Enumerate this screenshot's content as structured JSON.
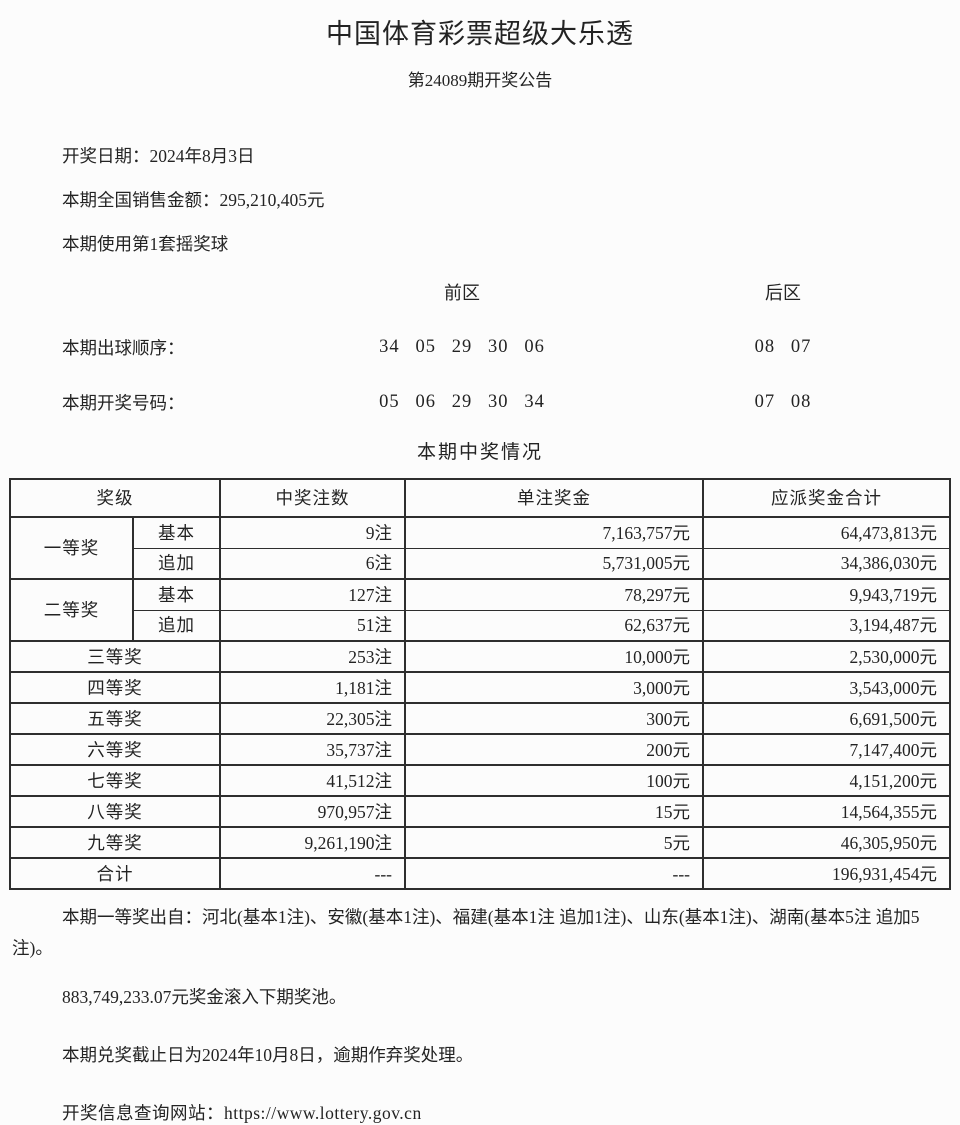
{
  "header": {
    "title": "中国体育彩票超级大乐透",
    "subtitle": "第24089期开奖公告"
  },
  "info": {
    "draw_date": "开奖日期：2024年8月3日",
    "sales_amount": "本期全国销售金额：295,210,405元",
    "ball_set": "本期使用第1套摇奖球"
  },
  "numbers": {
    "front_zone_label": "前区",
    "back_zone_label": "后区",
    "draw_order_label": "本期出球顺序：",
    "draw_order_front": "34 05 29 30 06",
    "draw_order_back": "08 07",
    "winning_label": "本期开奖号码：",
    "winning_front": "05 06 29 30 34",
    "winning_back": "07 08"
  },
  "prize_section": {
    "section_title": "本期中奖情况",
    "headers": {
      "level": "奖级",
      "count": "中奖注数",
      "single_prize": "单注奖金",
      "total_prize": "应派奖金合计"
    },
    "groups": [
      {
        "level": "一等奖",
        "rows": [
          {
            "type": "基本",
            "count": "9注",
            "single_prize": "7,163,757元",
            "total_prize": "64,473,813元"
          },
          {
            "type": "追加",
            "count": "6注",
            "single_prize": "5,731,005元",
            "total_prize": "34,386,030元"
          }
        ]
      },
      {
        "level": "二等奖",
        "rows": [
          {
            "type": "基本",
            "count": "127注",
            "single_prize": "78,297元",
            "total_prize": "9,943,719元"
          },
          {
            "type": "追加",
            "count": "51注",
            "single_prize": "62,637元",
            "total_prize": "3,194,487元"
          }
        ]
      }
    ],
    "rows": [
      {
        "level": "三等奖",
        "count": "253注",
        "single_prize": "10,000元",
        "total_prize": "2,530,000元"
      },
      {
        "level": "四等奖",
        "count": "1,181注",
        "single_prize": "3,000元",
        "total_prize": "3,543,000元"
      },
      {
        "level": "五等奖",
        "count": "22,305注",
        "single_prize": "300元",
        "total_prize": "6,691,500元"
      },
      {
        "level": "六等奖",
        "count": "35,737注",
        "single_prize": "200元",
        "total_prize": "7,147,400元"
      },
      {
        "level": "七等奖",
        "count": "41,512注",
        "single_prize": "100元",
        "total_prize": "4,151,200元"
      },
      {
        "level": "八等奖",
        "count": "970,957注",
        "single_prize": "15元",
        "total_prize": "14,564,355元"
      },
      {
        "level": "九等奖",
        "count": "9,261,190注",
        "single_prize": "5元",
        "total_prize": "46,305,950元"
      }
    ],
    "total_row": {
      "level": "合计",
      "count": "---",
      "single_prize": "---",
      "total_prize": "196,931,454元"
    }
  },
  "notes": {
    "first_prize_origin": "本期一等奖出自：河北(基本1注)、安徽(基本1注)、福建(基本1注 追加1注)、山东(基本1注)、湖南(基本5注 追加5注)。",
    "rollover": "883,749,233.07元奖金滚入下期奖池。",
    "redeem_deadline": "本期兑奖截止日为2024年10月8日，逾期作弃奖处理。",
    "website_line": "开奖信息查询网站：https://www.lottery.gov.cn"
  }
}
